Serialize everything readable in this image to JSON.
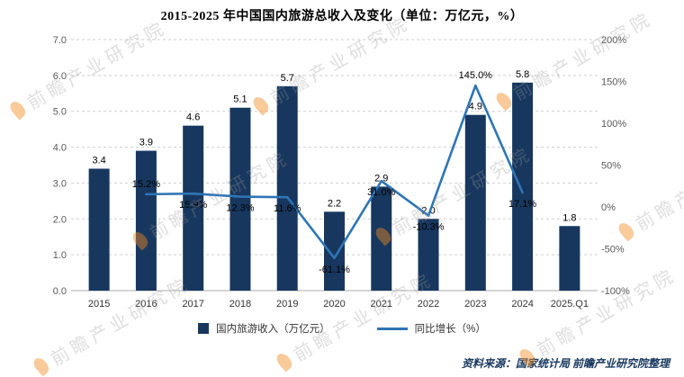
{
  "title": "2015-2025 年中国国内旅游总收入及变化（单位：万亿元，%）",
  "source": "资料来源：国家统计局 前瞻产业研究院整理",
  "watermark": {
    "text": "前瞻产业研究院"
  },
  "legend": {
    "bar_label": "国内旅游收入（万亿元）",
    "line_label": "同比增长（%）"
  },
  "colors": {
    "bar": "#17375E",
    "line": "#2E75B6",
    "grid": "#CFCFCF",
    "baseline": "#ABABAB",
    "axis_text": "#595959",
    "x_label_text": "#333333",
    "data_label_text": "#000000",
    "source_text": "#17375E",
    "watermark_text": "#9A9A9A",
    "watermark_logo": "#F28A1E"
  },
  "chart_data": {
    "type": "bar+line",
    "title": "2015-2025 年中国国内旅游总收入及变化（单位：万亿元，%）",
    "categories": [
      "2015",
      "2016",
      "2017",
      "2018",
      "2019",
      "2020",
      "2021",
      "2022",
      "2023",
      "2024",
      "2025.Q1"
    ],
    "series": [
      {
        "name": "国内旅游收入（万亿元）",
        "type": "bar",
        "axis": "left",
        "values": [
          3.4,
          3.9,
          4.6,
          5.1,
          5.7,
          2.2,
          2.9,
          2.0,
          4.9,
          5.8,
          1.8
        ],
        "labels": [
          "3.4",
          "3.9",
          "4.6",
          "5.1",
          "5.7",
          "2.2",
          "2.9",
          "2.0",
          "4.9",
          "5.8",
          "1.8"
        ]
      },
      {
        "name": "同比增长（%）",
        "type": "line",
        "axis": "right",
        "values": [
          null,
          15.2,
          15.9,
          12.3,
          11.6,
          -61.1,
          31.0,
          -10.3,
          145.0,
          17.1,
          null
        ],
        "labels": [
          null,
          "15.2%",
          "15.9%",
          "12.3%",
          "11.6%",
          "-61.1%",
          "31.0%",
          "-10.3%",
          "145.0%",
          "17.1%",
          null
        ],
        "label_pos": [
          null,
          "above",
          "below",
          "below",
          "below",
          "below",
          "below",
          "below",
          "above",
          "below",
          null
        ]
      }
    ],
    "left_axis": {
      "min": 0,
      "max": 7,
      "step": 1,
      "tick_labels": [
        "7.0",
        "6.0",
        "5.0",
        "4.0",
        "3.0",
        "2.0",
        "1.0",
        "0.0"
      ]
    },
    "right_axis": {
      "min": -100,
      "max": 200,
      "step": 50,
      "tick_labels": [
        "200%",
        "150%",
        "100%",
        "50%",
        "0%",
        "-50%",
        "-100%"
      ]
    },
    "grid": true,
    "legend_position": "bottom"
  }
}
